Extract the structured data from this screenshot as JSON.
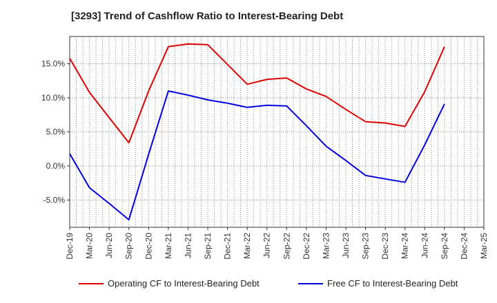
{
  "chart_data": {
    "type": "line",
    "title": "[3293]  Trend of Cashflow Ratio to Interest-Bearing Debt",
    "xlabel": "",
    "ylabel": "",
    "categories": [
      "Dec-19",
      "Mar-20",
      "Jun-20",
      "Sep-20",
      "Dec-20",
      "Mar-21",
      "Jun-21",
      "Sep-21",
      "Dec-21",
      "Mar-22",
      "Jun-22",
      "Sep-22",
      "Dec-22",
      "Mar-23",
      "Jun-23",
      "Sep-23",
      "Dec-23",
      "Mar-24",
      "Jun-24",
      "Sep-24",
      "Dec-24",
      "Mar-25"
    ],
    "yticks": [
      "15.0%",
      "10.0%",
      "5.0%",
      "0.0%",
      "-5.0%"
    ],
    "ytick_values": [
      15,
      10,
      5,
      0,
      -5
    ],
    "ylim": [
      -9,
      19
    ],
    "grid": true,
    "legend_position": "bottom",
    "series": [
      {
        "name": "Operating CF to Interest-Bearing Debt",
        "color": "#e00000",
        "values": [
          15.8,
          10.8,
          7.1,
          3.4,
          11.0,
          17.5,
          17.9,
          17.8,
          14.9,
          12.0,
          12.7,
          12.9,
          11.3,
          10.2,
          8.3,
          6.5,
          6.3,
          5.8,
          10.9,
          17.5,
          null,
          null
        ]
      },
      {
        "name": "Free CF to Interest-Bearing Debt",
        "color": "#0000e0",
        "values": [
          1.8,
          -3.2,
          -5.5,
          -7.9,
          1.7,
          11.0,
          10.4,
          9.7,
          9.2,
          8.6,
          8.9,
          8.8,
          5.9,
          2.9,
          0.8,
          -1.4,
          -1.9,
          -2.4,
          3.1,
          9.1,
          null,
          null
        ]
      }
    ]
  }
}
